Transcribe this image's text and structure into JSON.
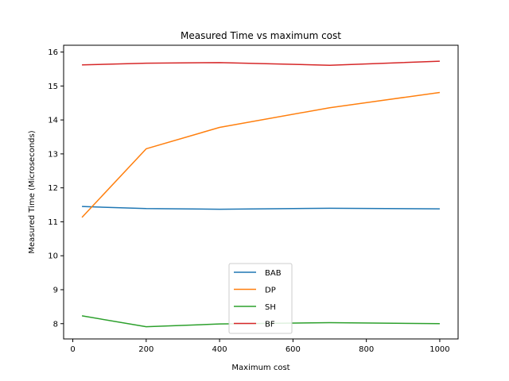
{
  "chart_data": {
    "type": "line",
    "title": "Measured Time vs maximum cost",
    "xlabel": "Maximum cost",
    "ylabel": "Measured Time (Microseconds)",
    "x": [
      25,
      200,
      400,
      700,
      1000
    ],
    "xlim": [
      -25,
      1050
    ],
    "ylim": [
      7.55,
      16.2
    ],
    "xticks": [
      0,
      200,
      400,
      600,
      800,
      1000
    ],
    "yticks": [
      8,
      9,
      10,
      11,
      12,
      13,
      14,
      15,
      16
    ],
    "grid": false,
    "legend_position": "lower-center",
    "series": [
      {
        "name": "BAB",
        "color": "#1f77b4",
        "values": [
          11.45,
          11.39,
          11.37,
          11.4,
          11.38
        ]
      },
      {
        "name": "DP",
        "color": "#ff7f0e",
        "values": [
          11.13,
          13.15,
          13.78,
          14.36,
          14.81
        ]
      },
      {
        "name": "SH",
        "color": "#2ca02c",
        "values": [
          8.23,
          7.91,
          7.99,
          8.03,
          8.0
        ]
      },
      {
        "name": "BF",
        "color": "#d62728",
        "values": [
          15.62,
          15.67,
          15.69,
          15.61,
          15.73
        ]
      }
    ]
  }
}
